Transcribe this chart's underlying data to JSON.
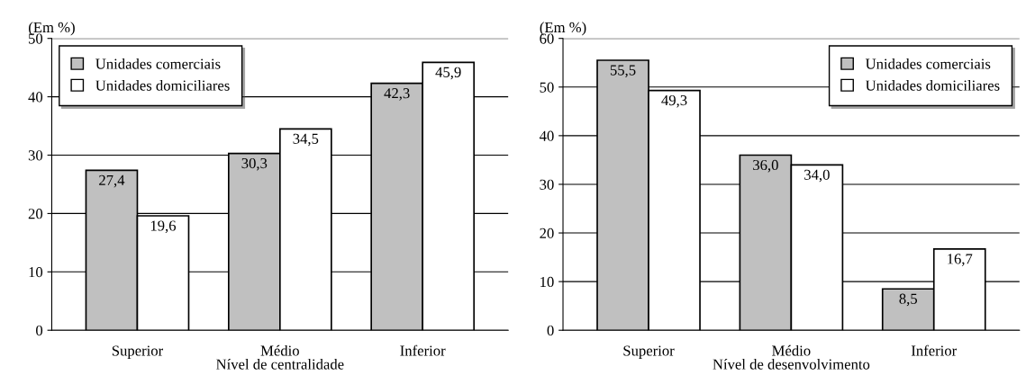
{
  "chart_data": [
    {
      "type": "bar",
      "ylabel": "(Em %)",
      "xlabel": "Nível de centralidade",
      "categories": [
        "Superior",
        "Médio",
        "Inferior"
      ],
      "series": [
        {
          "name": "Unidades comerciais",
          "color": "#c0c0c0",
          "values": [
            27.4,
            30.3,
            42.3
          ],
          "value_labels": [
            "27,4",
            "30,3",
            "42,3"
          ]
        },
        {
          "name": "Unidades domiciliares",
          "color": "#ffffff",
          "values": [
            19.6,
            34.5,
            45.9
          ],
          "value_labels": [
            "19,6",
            "34,5",
            "45,9"
          ]
        }
      ],
      "ylim": [
        0,
        50
      ],
      "yticks": [
        0,
        10,
        20,
        30,
        40,
        50
      ],
      "grid": "y",
      "legend": "top left"
    },
    {
      "type": "bar",
      "ylabel": "(Em %)",
      "xlabel": "Nível de desenvolvimento",
      "categories": [
        "Superior",
        "Médio",
        "Inferior"
      ],
      "series": [
        {
          "name": "Unidades comerciais",
          "color": "#c0c0c0",
          "values": [
            55.5,
            36.0,
            8.5
          ],
          "value_labels": [
            "55,5",
            "36,0",
            "8,5"
          ]
        },
        {
          "name": "Unidades domiciliares",
          "color": "#ffffff",
          "values": [
            49.3,
            34.0,
            16.7
          ],
          "value_labels": [
            "49,3",
            "34,0",
            "16,7"
          ]
        }
      ],
      "ylim": [
        0,
        60
      ],
      "yticks": [
        0,
        10,
        20,
        30,
        40,
        50,
        60
      ],
      "grid": "y",
      "legend": "top right"
    }
  ]
}
